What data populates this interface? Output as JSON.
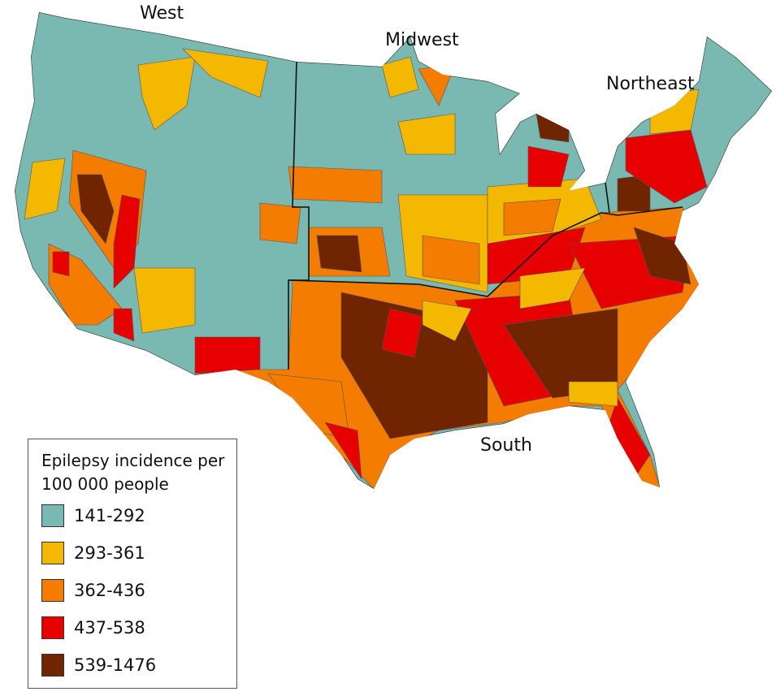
{
  "map": {
    "regions": [
      {
        "name": "West"
      },
      {
        "name": "Midwest"
      },
      {
        "name": "Northeast"
      },
      {
        "name": "South"
      }
    ]
  },
  "legend": {
    "title": "Epilepsy incidence per 100 000 people",
    "items": [
      {
        "label": "141-292",
        "color": "#7ab8b2"
      },
      {
        "label": "293-361",
        "color": "#f5b800"
      },
      {
        "label": "362-436",
        "color": "#f47c00"
      },
      {
        "label": "437-538",
        "color": "#e60000"
      },
      {
        "label": "539-1476",
        "color": "#702400"
      }
    ]
  }
}
